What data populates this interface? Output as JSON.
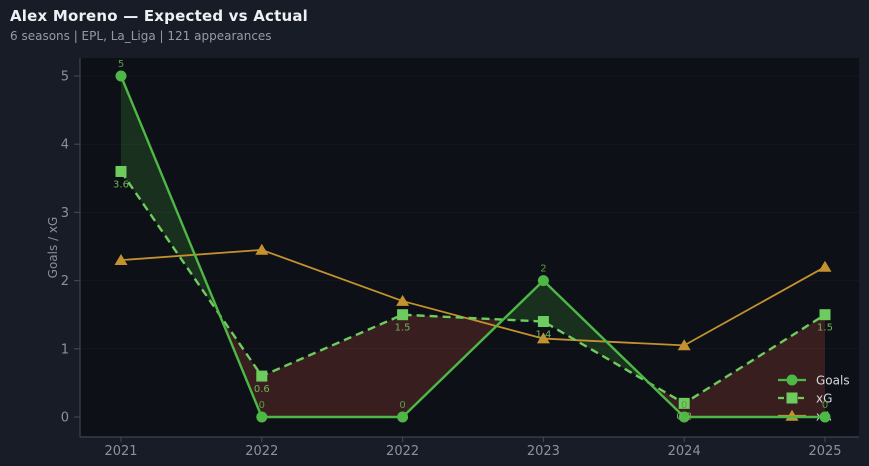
{
  "header": {
    "title": "Alex Moreno — Expected vs Actual",
    "subtitle": "6 seasons | EPL, La_Liga | 121 appearances"
  },
  "chart_data": {
    "type": "line",
    "title": "Alex Moreno — Expected vs Actual",
    "subtitle": "6 seasons | EPL, La_Liga | 121 appearances",
    "categories": [
      "2021",
      "2022",
      "2022",
      "2023",
      "2024",
      "2025"
    ],
    "series": [
      {
        "name": "Goals",
        "marker": "circle",
        "line_style": "solid",
        "color": "#4db845",
        "label_color": "#5d9a44",
        "values": [
          5,
          0,
          0,
          2,
          0,
          0
        ],
        "point_labels": [
          "5",
          "0",
          "0",
          "2",
          "0",
          "0"
        ]
      },
      {
        "name": "xG",
        "marker": "square",
        "line_style": "dashed",
        "color": "#6ecb5e",
        "label_color": "#74b258",
        "values": [
          3.6,
          0.6,
          1.5,
          1.4,
          0.2,
          1.5
        ],
        "point_labels": [
          "3.6",
          "0.6",
          "1.5",
          "1.4",
          "0.2",
          "1.5"
        ]
      },
      {
        "name": "xA",
        "marker": "triangle",
        "line_style": "solid",
        "color": "#c3922e",
        "label_color": "",
        "values": [
          2.3,
          2.45,
          1.7,
          1.15,
          1.05,
          2.2
        ],
        "point_labels": []
      }
    ],
    "xlabel": "",
    "ylabel": "Goals / xG",
    "yticks": [
      0,
      1,
      2,
      3,
      4,
      5
    ],
    "ylim": [
      0,
      5.3
    ],
    "grid": "subtle-horizontal",
    "legend_position": "bottom-right",
    "legend_items": [
      "Goals",
      "xG",
      "xA"
    ],
    "fill_between": {
      "between": "Goals and xG",
      "goals_above_color": "rgba(80,180,70,0.20)",
      "xg_above_color": "rgba(190,70,65,0.25)"
    }
  },
  "colors": {
    "outer_background": "#181c26",
    "plot_background": "#0d1016",
    "spine": "#3e4450",
    "axis_text": "#8b919c",
    "title_text": "#eef0f4",
    "subtitle_text": "#959ba6",
    "legend_text": "#d6d9de"
  }
}
